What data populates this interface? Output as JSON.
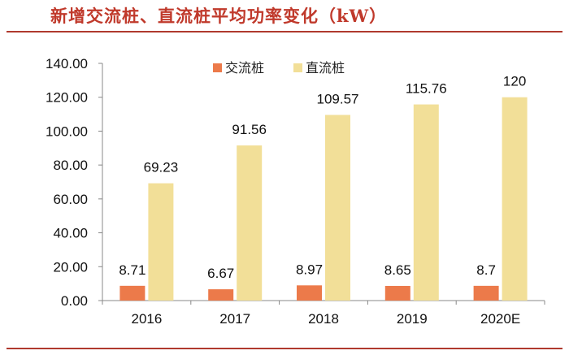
{
  "chart_data": {
    "type": "bar",
    "title": "新增交流桩、直流桩平均功率变化（kW）",
    "categories": [
      "2016",
      "2017",
      "2018",
      "2019",
      "2020E"
    ],
    "series": [
      {
        "name": "交流桩",
        "color": "#ec7a4a",
        "values": [
          8.71,
          6.67,
          8.97,
          8.65,
          8.7
        ],
        "labels": [
          "8.71",
          "6.67",
          "8.97",
          "8.65",
          "8.7"
        ]
      },
      {
        "name": "直流桩",
        "color": "#f2df98",
        "values": [
          69.23,
          91.56,
          109.57,
          115.76,
          120
        ],
        "labels": [
          "69.23",
          "91.56",
          "109.57",
          "115.76",
          "120"
        ]
      }
    ],
    "ylim": [
      0,
      140
    ],
    "yticks": [
      "0.00",
      "20.00",
      "40.00",
      "60.00",
      "80.00",
      "100.00",
      "120.00",
      "140.00"
    ],
    "ytick_values": [
      0,
      20,
      40,
      60,
      80,
      100,
      120,
      140
    ],
    "legend_position": "top-center",
    "grid": false
  }
}
